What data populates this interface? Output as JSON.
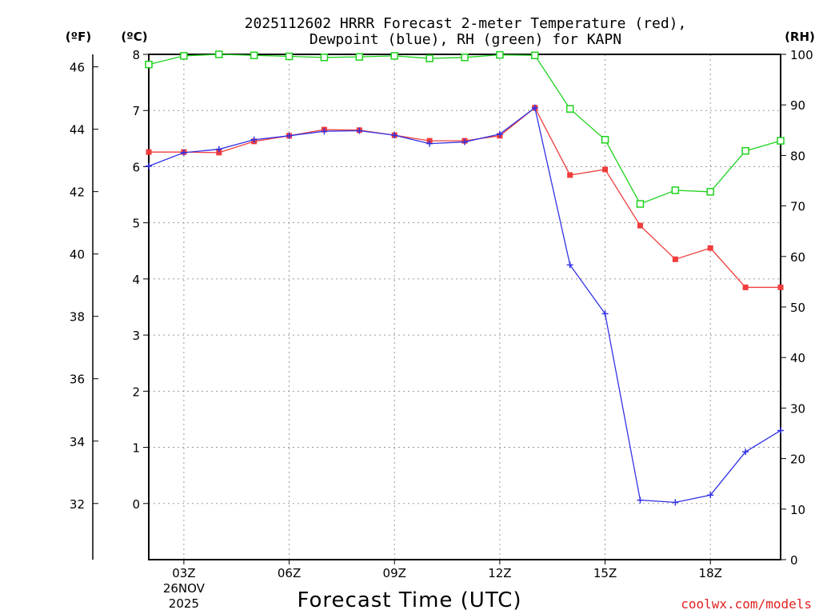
{
  "chart_data": {
    "type": "line",
    "title_line1": "2025112602 HRRR Forecast 2-meter Temperature (red),",
    "title_line2": "Dewpoint (blue), RH (green) for KAPN",
    "xlabel": "Forecast Time (UTC)",
    "credit": "coolwx.com/models",
    "unit_f": "(ºF)",
    "unit_c": "(ºC)",
    "unit_rh": "(RH)",
    "x_hours": [
      2,
      3,
      4,
      5,
      6,
      7,
      8,
      9,
      10,
      11,
      12,
      13,
      14,
      15,
      16,
      17,
      18,
      19,
      20
    ],
    "x_ticks": [
      {
        "hour": 3,
        "label": "03Z",
        "sub1": "26NOV",
        "sub2": "2025"
      },
      {
        "hour": 6,
        "label": "06Z",
        "sub1": "",
        "sub2": ""
      },
      {
        "hour": 9,
        "label": "09Z",
        "sub1": "",
        "sub2": ""
      },
      {
        "hour": 12,
        "label": "12Z",
        "sub1": "",
        "sub2": ""
      },
      {
        "hour": 15,
        "label": "15Z",
        "sub1": "",
        "sub2": ""
      },
      {
        "hour": 18,
        "label": "18Z",
        "sub1": "",
        "sub2": ""
      }
    ],
    "xlim": [
      2,
      20
    ],
    "ylim_c": [
      -1,
      8
    ],
    "ylim_rh": [
      0,
      100
    ],
    "c_ticks": [
      "0",
      "1",
      "2",
      "3",
      "4",
      "5",
      "6",
      "7",
      "8"
    ],
    "f_ticks": [
      "32",
      "34",
      "36",
      "38",
      "40",
      "42",
      "44",
      "46"
    ],
    "rh_ticks": [
      "0",
      "10",
      "20",
      "30",
      "40",
      "50",
      "60",
      "70",
      "80",
      "90",
      "100"
    ],
    "series": [
      {
        "name": "Temperature",
        "unit": "C",
        "color": "#f03c3c",
        "marker": "filled-square",
        "values": [
          6.26,
          6.26,
          6.25,
          6.45,
          6.55,
          6.66,
          6.65,
          6.56,
          6.46,
          6.46,
          6.55,
          7.05,
          5.85,
          5.95,
          4.95,
          4.35,
          4.55,
          3.85,
          3.85
        ]
      },
      {
        "name": "Dewpoint",
        "unit": "C",
        "color": "#3232e6",
        "marker": "plus",
        "values": [
          6.01,
          6.25,
          6.31,
          6.48,
          6.55,
          6.63,
          6.64,
          6.56,
          6.41,
          6.44,
          6.58,
          7.05,
          4.25,
          3.38,
          0.06,
          0.02,
          0.15,
          0.92,
          1.3
        ]
      },
      {
        "name": "RH",
        "unit": "%",
        "color": "#1ed21e",
        "marker": "open-square",
        "values": [
          98,
          99.7,
          100,
          99.8,
          99.6,
          99.4,
          99.5,
          99.7,
          99.2,
          99.4,
          99.9,
          99.8,
          89.2,
          83.1,
          70.4,
          73.1,
          72.8,
          80.9,
          82.9
        ]
      }
    ]
  }
}
